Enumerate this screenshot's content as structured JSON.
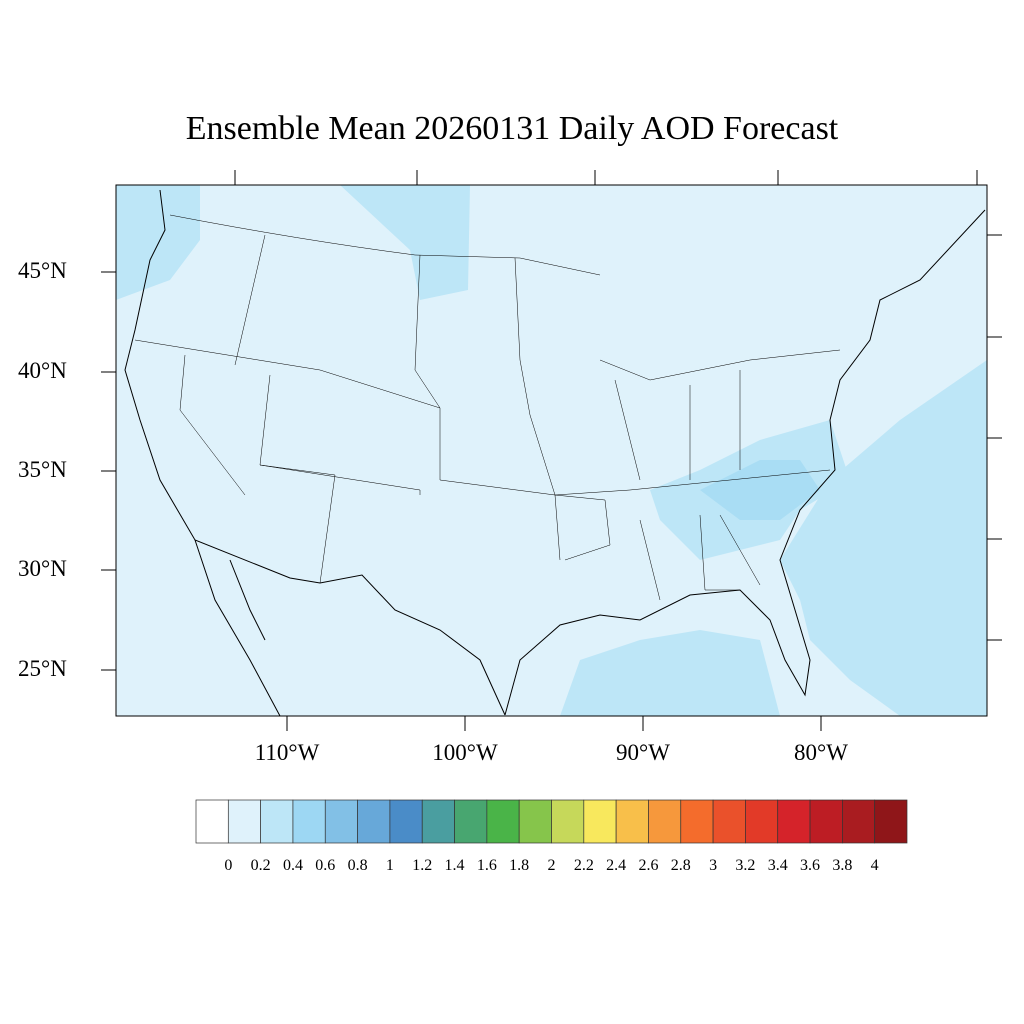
{
  "title": "Ensemble Mean 20260131 Daily AOD Forecast",
  "map": {
    "region": "Continental United States",
    "variable": "AOD",
    "lat_labels": [
      "45°N",
      "40°N",
      "35°N",
      "30°N",
      "25°N"
    ],
    "lon_labels": [
      "110°W",
      "100°W",
      "90°W",
      "80°W"
    ],
    "background_color": "#dff2fb"
  },
  "colorbar": {
    "labels": [
      "0",
      "0.2",
      "0.4",
      "0.6",
      "0.8",
      "1",
      "1.2",
      "1.4",
      "1.6",
      "1.8",
      "2",
      "2.2",
      "2.4",
      "2.6",
      "2.8",
      "3",
      "3.2",
      "3.4",
      "3.6",
      "3.8",
      "4"
    ],
    "colors": [
      "#ffffff",
      "#dff2fb",
      "#bde6f7",
      "#9dd7f3",
      "#82c0e6",
      "#67a8d9",
      "#4a8cc8",
      "#4a9ea0",
      "#48a670",
      "#4ab448",
      "#86c54b",
      "#c6d85a",
      "#f8e85d",
      "#f8bf4a",
      "#f6983c",
      "#f46c2c",
      "#ea512b",
      "#e23a28",
      "#d5232a",
      "#bd1d24",
      "#a91c20",
      "#8f1619"
    ]
  }
}
